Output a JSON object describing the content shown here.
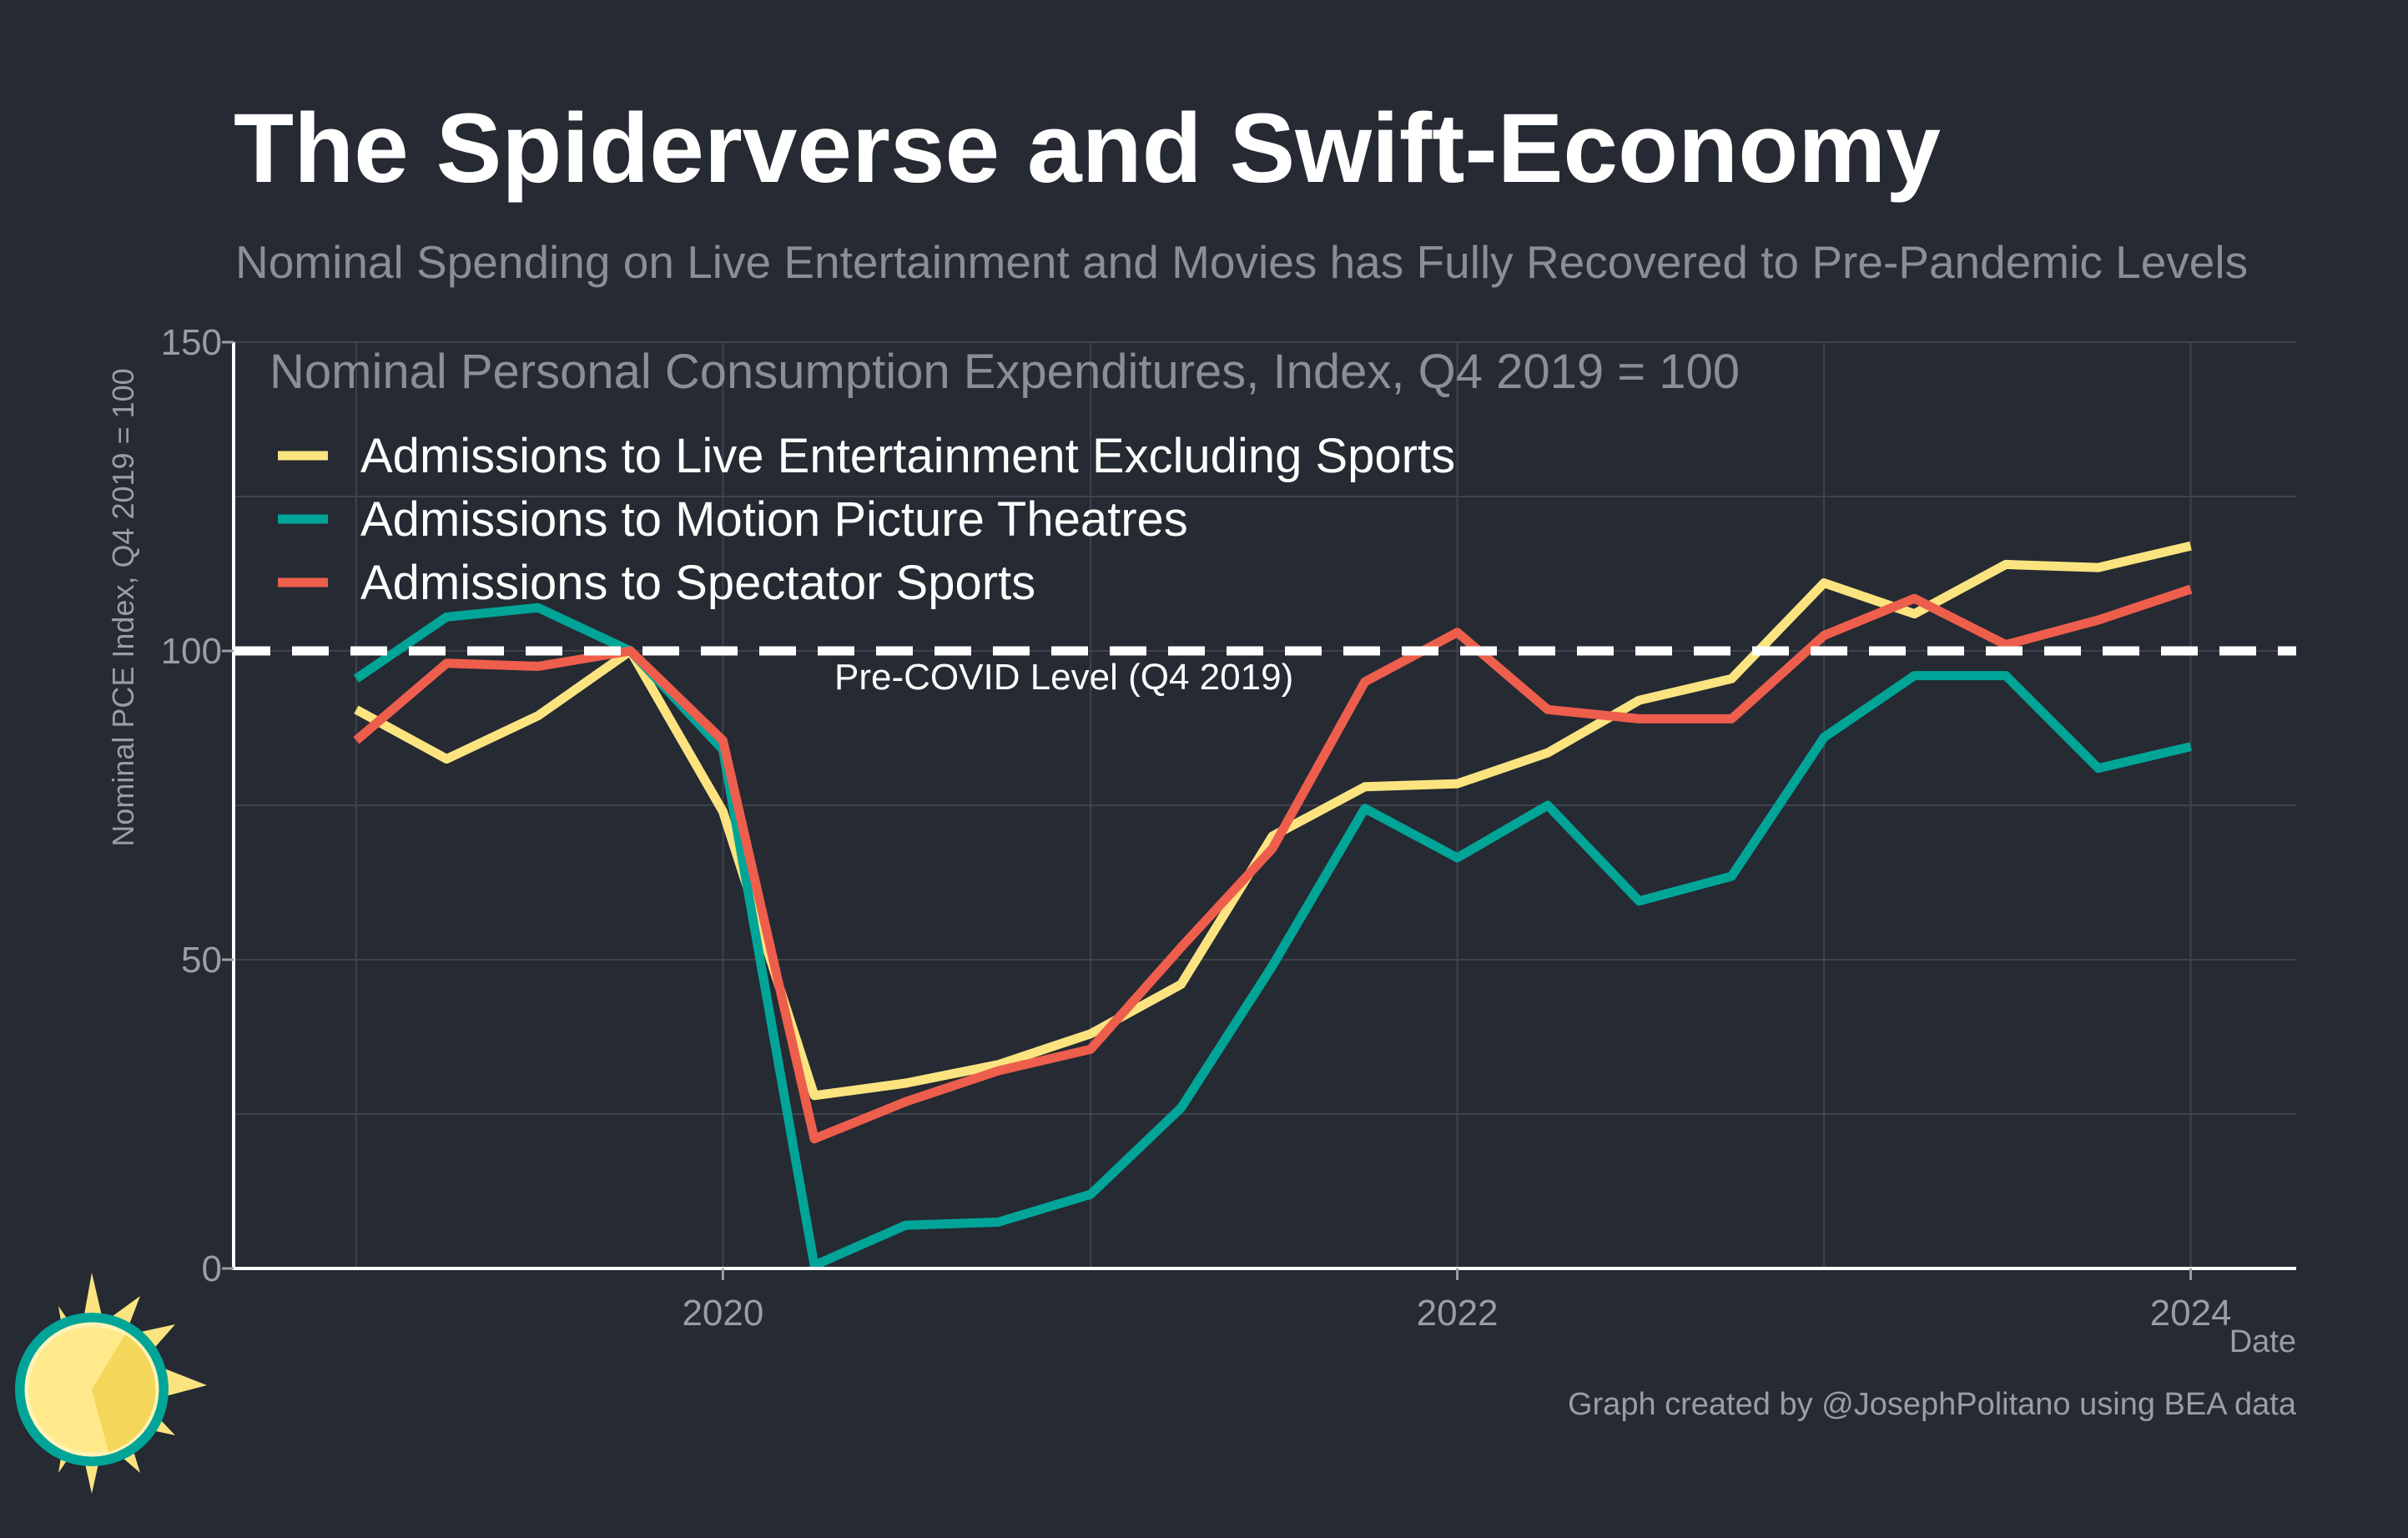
{
  "title": "The Spiderverse and Swift-Economy",
  "subtitle": "Nominal Spending on Live Entertainment and Movies has Fully Recovered to Pre-Pandemic Levels",
  "footer": "Graph created by @JosephPolitano using BEA data",
  "colors": {
    "background": "#252a33",
    "live_entertainment": "#fbe47f",
    "motion_pictures": "#00a598",
    "spectator_sports": "#ee5e4c",
    "reference_line": "#ffffff",
    "grid": "#3e434c",
    "axis_text": "#9a9da3"
  },
  "chart_data": {
    "type": "line",
    "title": "Nominal Personal Consumption Expenditures, Index, Q4 2019 = 100",
    "xlabel": "Date",
    "ylabel": "Nominal PCE Index, Q4 2019 = 100",
    "x": [
      "2019-01-01",
      "2019-04-01",
      "2019-07-01",
      "2019-10-01",
      "2020-01-01",
      "2020-04-01",
      "2020-07-01",
      "2020-10-01",
      "2021-01-01",
      "2021-04-01",
      "2021-07-01",
      "2021-10-01",
      "2022-01-01",
      "2022-04-01",
      "2022-07-01",
      "2022-10-01",
      "2023-01-01",
      "2023-04-01",
      "2023-07-01",
      "2023-10-01",
      "2024-01-01"
    ],
    "xlim": [
      "2018-09-01",
      "2024-04-15"
    ],
    "ylim": [
      0,
      150
    ],
    "x_ticks": [
      "2020",
      "2022",
      "2024"
    ],
    "y_ticks": [
      0,
      50,
      100,
      150
    ],
    "grid": true,
    "legend_placement": "top-left",
    "reference_line": {
      "y": 100,
      "label": "Pre-COVID Level (Q4 2019)",
      "style": "dashed"
    },
    "series": [
      {
        "name": "Admissions to Live Entertainment Excluding Sports",
        "color": "#fbe47f",
        "values": [
          90.5,
          82.5,
          89.5,
          100,
          74,
          28,
          30,
          33,
          38,
          46,
          70,
          78,
          78.5,
          83.5,
          92,
          95.5,
          111,
          106,
          114,
          113.5,
          117
        ]
      },
      {
        "name": "Admissions to Motion Picture Theatres",
        "color": "#00a598",
        "values": [
          95.5,
          105.5,
          107,
          100,
          84,
          0.5,
          7,
          7.5,
          12,
          26,
          49,
          74.5,
          66.5,
          75,
          59.5,
          63.5,
          86,
          96,
          96,
          81,
          84.5
        ]
      },
      {
        "name": "Admissions to Spectator Sports",
        "color": "#ee5e4c",
        "values": [
          85.5,
          98,
          97.5,
          100,
          85.5,
          21,
          27,
          32,
          35.5,
          52,
          68,
          95,
          103,
          90.5,
          89,
          89,
          102.5,
          108.5,
          101,
          105,
          110
        ]
      }
    ]
  }
}
